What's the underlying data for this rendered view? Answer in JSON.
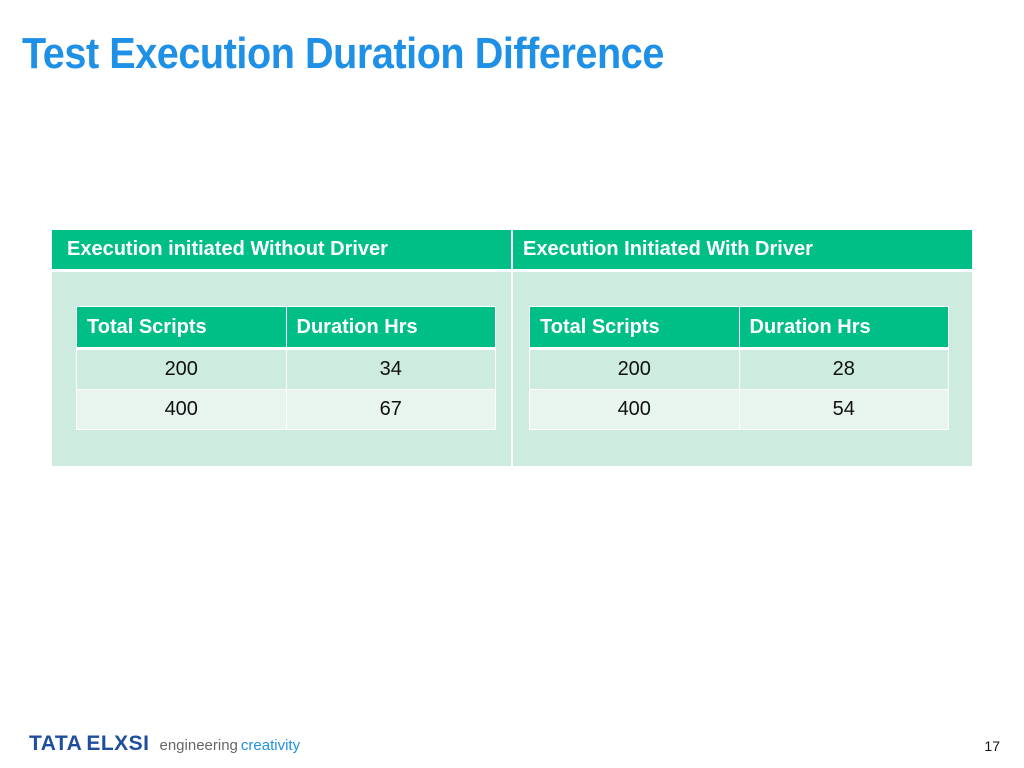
{
  "slide": {
    "title": "Test Execution Duration Difference",
    "page_number": "17"
  },
  "comparison": {
    "left": {
      "header": "Execution initiated Without Driver",
      "columns": [
        "Total Scripts",
        "Duration Hrs"
      ],
      "rows": [
        [
          "200",
          "34"
        ],
        [
          "400",
          "67"
        ]
      ]
    },
    "right": {
      "header": "Execution Initiated  With Driver",
      "columns": [
        "Total Scripts",
        "Duration Hrs"
      ],
      "rows": [
        [
          "200",
          "28"
        ],
        [
          "400",
          "54"
        ]
      ]
    }
  },
  "footer": {
    "logo_tata": "TATA",
    "logo_elxsi": "ELXSI",
    "tagline_1": "engineering",
    "tagline_2": "creativity"
  },
  "colors": {
    "title": "#1e90e6",
    "header_fill": "#00bf86",
    "panel_fill": "#cdebdf",
    "row_alt_fill": "#e8f5ef",
    "logo_blue": "#1f4e9c"
  }
}
